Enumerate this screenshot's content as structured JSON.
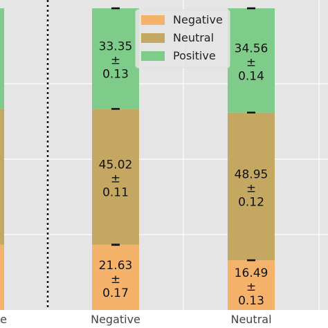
{
  "chart_data": {
    "type": "bar",
    "stacked": true,
    "categories": [
      "Negative",
      "Neutral"
    ],
    "partial_left_category_label": "e",
    "series": [
      {
        "name": "Negative",
        "color": "#f5b26b",
        "values": [
          21.63,
          16.49
        ],
        "errors": [
          0.17,
          0.13
        ]
      },
      {
        "name": "Neutral",
        "color": "#c4a862",
        "values": [
          45.02,
          48.95
        ],
        "errors": [
          0.11,
          0.12
        ]
      },
      {
        "name": "Positive",
        "color": "#7fcc8a",
        "values": [
          33.35,
          34.56
        ],
        "errors": [
          0.13,
          0.14
        ]
      }
    ],
    "ylim": [
      0,
      100
    ],
    "grid": true,
    "legend": "top-center",
    "separator": "dotted vertical line left of the Negative group",
    "value_label_format": "{value}\n±\n{error}",
    "pm_symbol": "±",
    "background_color": "#e5e5e5",
    "grid_color": "#ffffff"
  }
}
